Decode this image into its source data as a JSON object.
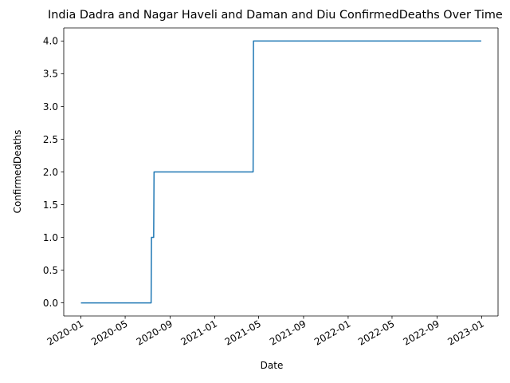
{
  "chart_data": {
    "type": "line",
    "title": "India Dadra and Nagar Haveli and Daman and Diu ConfirmedDeaths Over Time",
    "xlabel": "Date",
    "ylabel": "ConfirmedDeaths",
    "xlim": [
      "2019-11-15",
      "2023-02-15"
    ],
    "ylim": [
      -0.2,
      4.2
    ],
    "x_ticks": [
      "2020-01",
      "2020-05",
      "2020-09",
      "2021-01",
      "2021-05",
      "2021-09",
      "2022-01",
      "2022-05",
      "2022-09",
      "2023-01"
    ],
    "y_ticks": [
      "0.0",
      "0.5",
      "1.0",
      "1.5",
      "2.0",
      "2.5",
      "3.0",
      "3.5",
      "4.0"
    ],
    "grid": false,
    "colors": {
      "line": "#1f77b4",
      "axis": "#000000",
      "background": "#ffffff"
    },
    "series": [
      {
        "name": "",
        "x": [
          "2020-01-01",
          "2020-07-11",
          "2020-07-12",
          "2020-07-18",
          "2020-07-19",
          "2021-04-16",
          "2021-04-17",
          "2022-12-31"
        ],
        "y": [
          0,
          0,
          1,
          1,
          2,
          2,
          4,
          4
        ]
      }
    ]
  }
}
